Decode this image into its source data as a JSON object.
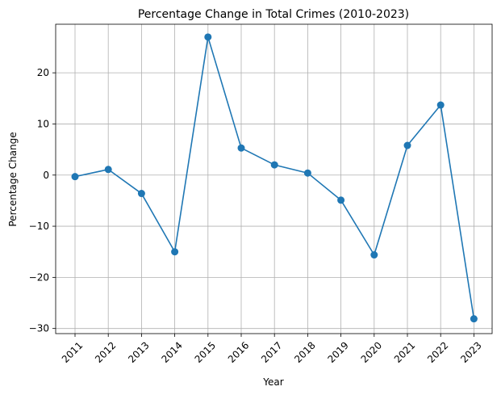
{
  "chart_data": {
    "type": "line",
    "title": "Percentage Change in Total Crimes (2010-2023)",
    "xlabel": "Year",
    "ylabel": "Percentage Change",
    "x": [
      "2011",
      "2012",
      "2013",
      "2014",
      "2015",
      "2016",
      "2017",
      "2018",
      "2019",
      "2020",
      "2021",
      "2022",
      "2023"
    ],
    "series": [
      {
        "values": [
          -0.3,
          1.1,
          -3.6,
          -15.0,
          27.0,
          5.3,
          2.0,
          0.4,
          -4.9,
          -15.6,
          5.8,
          13.7,
          -28.1
        ],
        "color": "#1f77b4",
        "marker": "circle"
      }
    ],
    "yticks": [
      -30,
      -20,
      -10,
      0,
      10,
      20
    ],
    "ytick_labels": [
      "−30",
      "−20",
      "−10",
      "0",
      "10",
      "20"
    ],
    "ylim": [
      -31,
      29.5
    ],
    "grid": true,
    "legend": "none"
  }
}
